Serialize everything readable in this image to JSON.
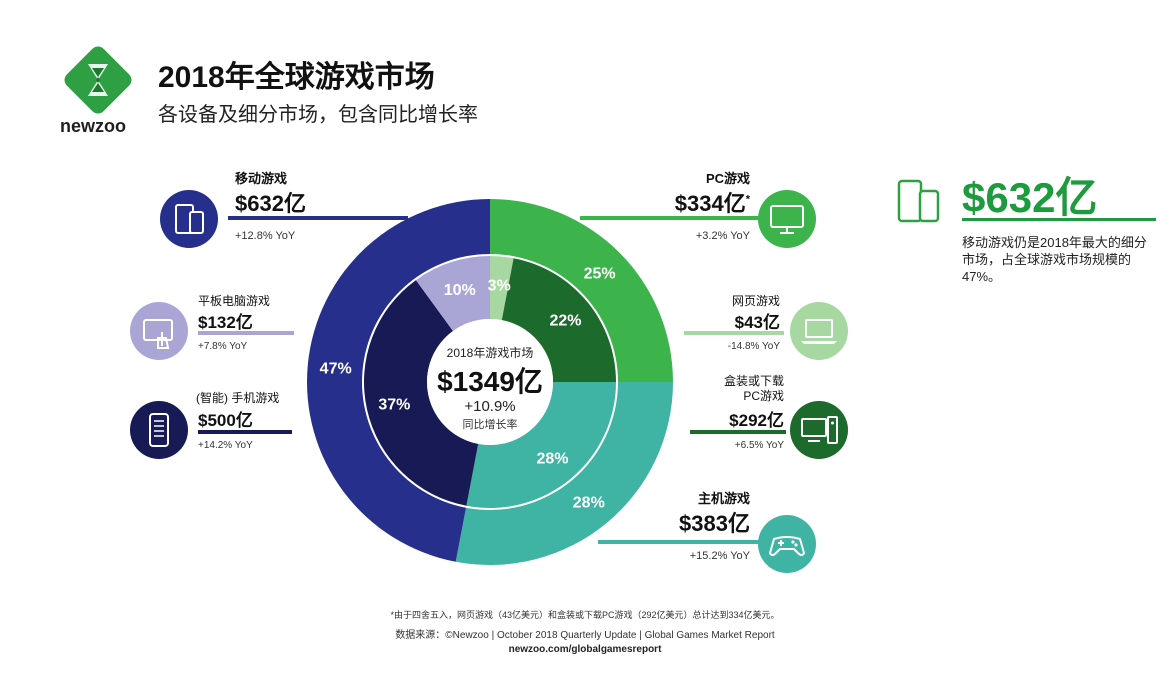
{
  "header": {
    "title": "2018年全球游戏市场",
    "subtitle": "各设备及细分市场，包含同比增长率",
    "logo_text": "newzoo"
  },
  "chart_data": {
    "type": "pie",
    "variant": "double-donut",
    "center": {
      "label": "2018年游戏市场",
      "value": "$1349亿",
      "growth": "+10.9%",
      "growth_label": "同比增长率"
    },
    "outer_ring": [
      {
        "name": "PC游戏",
        "percent": 25,
        "color": "#3cb44b"
      },
      {
        "name": "主机游戏",
        "percent": 28,
        "color": "#3fb3a4"
      },
      {
        "name": "移动游戏",
        "percent": 47,
        "color": "#272f8c"
      }
    ],
    "inner_ring": [
      {
        "name": "网页游戏",
        "percent": 3,
        "color": "#a7d8a1"
      },
      {
        "name": "盒装或下载PC游戏",
        "percent": 22,
        "color": "#1d6b2c"
      },
      {
        "name": "主机游戏",
        "percent": 28,
        "color": "#3fb3a4"
      },
      {
        "name": "(智能) 手机游戏",
        "percent": 37,
        "color": "#171a55"
      },
      {
        "name": "平板电脑游戏",
        "percent": 10,
        "color": "#a9a6d6"
      }
    ],
    "segments": {
      "mobile": {
        "name": "移动游戏",
        "value": "$632亿",
        "yoy": "+12.8% YoY",
        "icon": "mobile-devices-icon",
        "color": "#272f8c"
      },
      "tablet": {
        "name": "平板电脑游戏",
        "value": "$132亿",
        "yoy": "+7.8% YoY",
        "icon": "tablet-touch-icon",
        "color": "#a9a6d6"
      },
      "smartphone": {
        "name": "(智能) 手机游戏",
        "value": "$500亿",
        "yoy": "+14.2% YoY",
        "icon": "smartphone-icon",
        "color": "#171a55"
      },
      "pc": {
        "name": "PC游戏",
        "value": "$334亿",
        "value_mark": "*",
        "yoy": "+3.2% YoY",
        "icon": "monitor-icon",
        "color": "#3cb44b"
      },
      "browser": {
        "name": "网页游戏",
        "value": "$43亿",
        "yoy": "-14.8% YoY",
        "icon": "laptop-icon",
        "color": "#a7d8a1"
      },
      "boxed": {
        "name": "盒装或下载",
        "name2": "PC游戏",
        "value": "$292亿",
        "yoy": "+6.5% YoY",
        "icon": "desktop-tower-icon",
        "color": "#1d6b2c"
      },
      "console": {
        "name": "主机游戏",
        "value": "$383亿",
        "yoy": "+15.2% YoY",
        "icon": "gamepad-icon",
        "color": "#3fb3a4"
      }
    }
  },
  "highlight": {
    "value": "$632亿",
    "text": "移动游戏仍是2018年最大的细分市场，占全球游戏市场规模的47%。",
    "icon": "mobile-devices-icon",
    "color": "#1e9b3f"
  },
  "footer": {
    "note": "*由于四舍五入，网页游戏（43亿美元）和盒装或下载PC游戏（292亿美元）总计达到334亿美元。",
    "source": "数据来源：©Newzoo | October 2018 Quarterly Update | Global Games Market Report",
    "url": "newzoo.com/globalgamesreport"
  }
}
